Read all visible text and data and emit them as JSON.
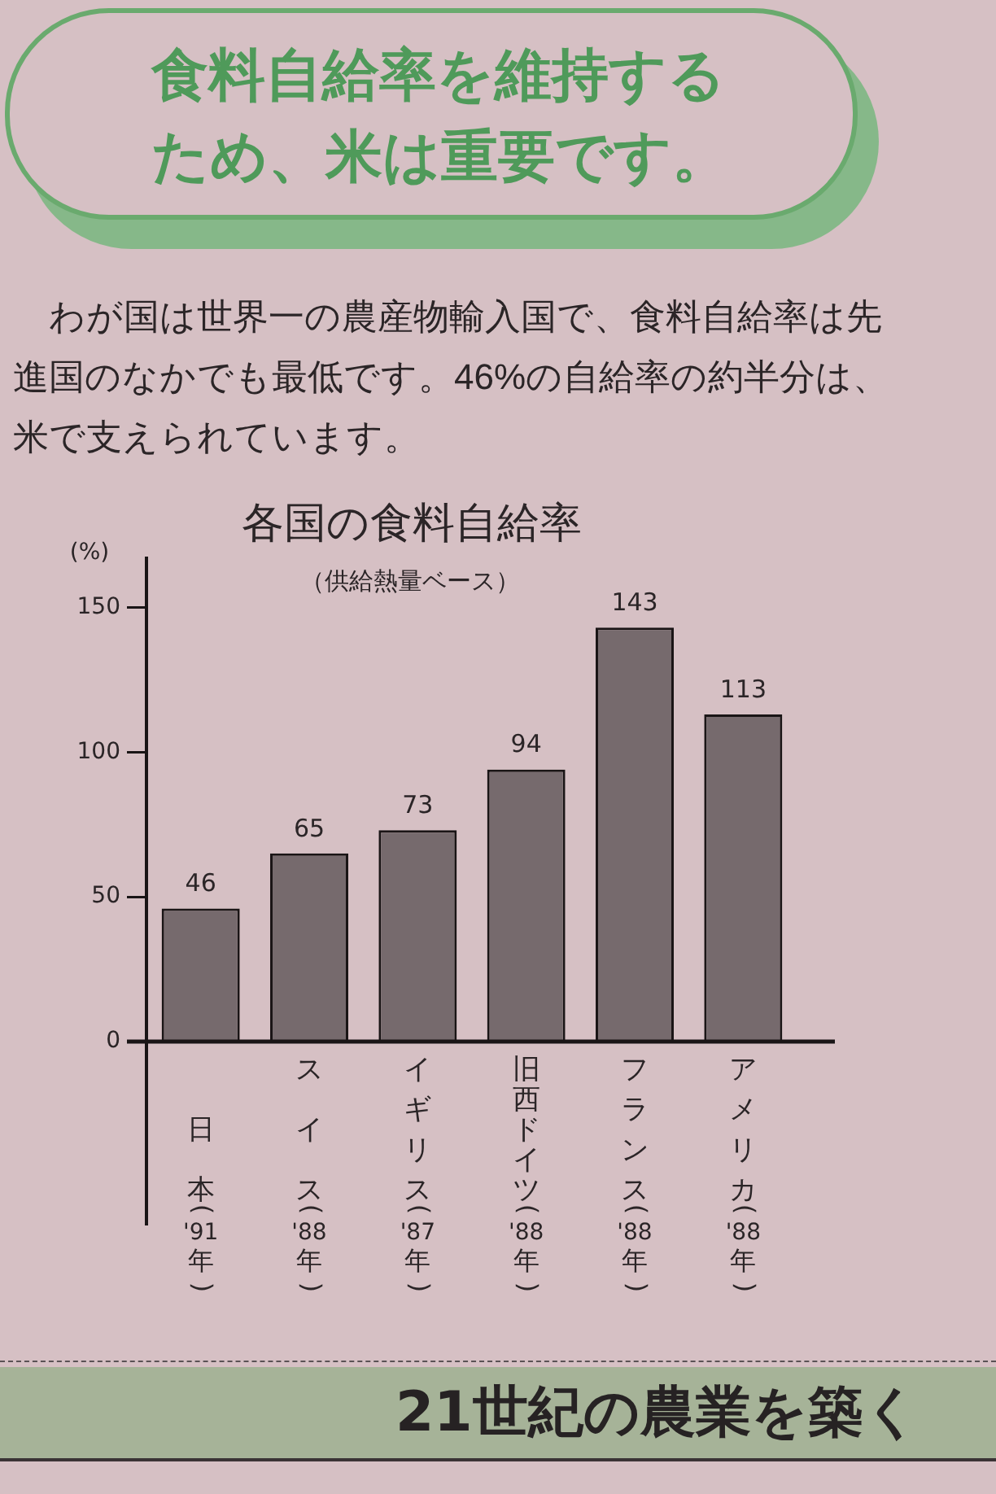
{
  "chart_data": {
    "type": "bar",
    "title": "各国の食料自給率",
    "subtitle": "（供給熱量ベース）",
    "ylabel": "(%)",
    "categories": [
      "日本('91年)",
      "スイス('88年)",
      "イギリス('87年)",
      "旧西ドイツ('88年)",
      "フランス('88年)",
      "アメリカ('88年)"
    ],
    "values": [
      46,
      65,
      73,
      94,
      143,
      113
    ],
    "color": "#766a6d",
    "ylim": [
      0,
      167
    ],
    "yticks": [
      0,
      50,
      100,
      150
    ],
    "data_labels": true,
    "annotations": [
      "食料自給率を維持するため、米は重要です。",
      "わが国は世界一の農産物輸入国で、食料自給率は先進国のなかでも最低です。46%の自給率の約半分は、米で支えられています。",
      "21世紀の農業を築く"
    ]
  }
}
